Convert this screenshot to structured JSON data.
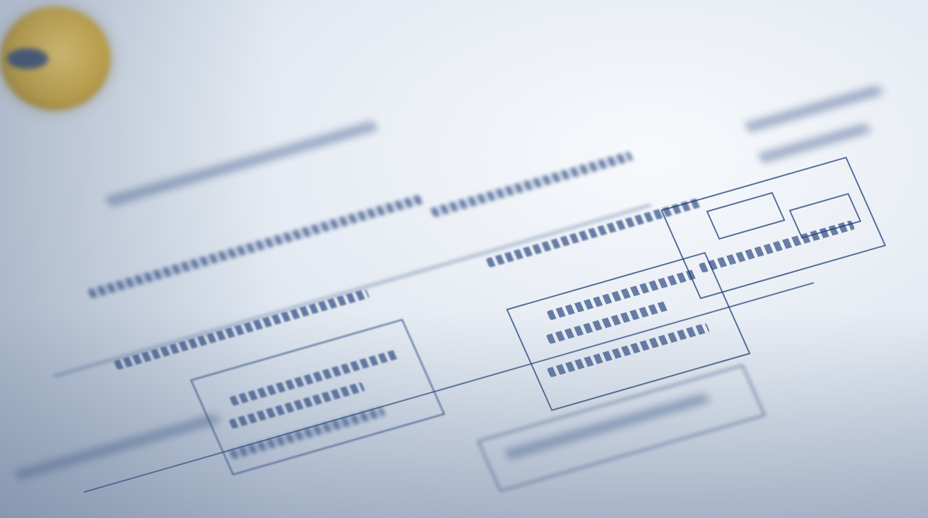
{
  "scene": {
    "subject": "document",
    "colors": {
      "ink": "#1f3f7a",
      "paper": "#eef2f7",
      "seal": "#c9a640"
    },
    "icons": [
      "seal-emblem"
    ]
  }
}
